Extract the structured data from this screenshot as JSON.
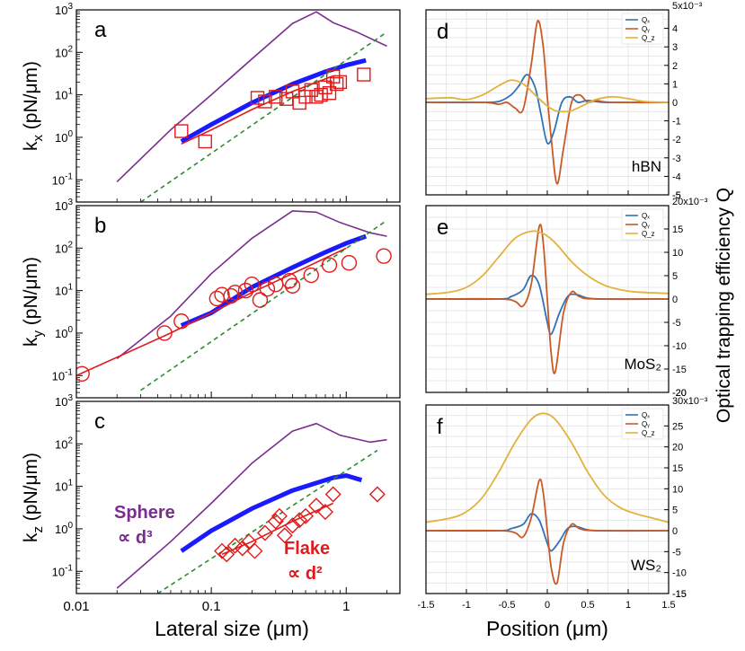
{
  "figure": {
    "left_xlabel": "Lateral size (μm)",
    "right_xlabel": "Position (μm)",
    "right_ylabel": "Optical trapping efficiency Q",
    "sphere_label_line1": "Sphere",
    "sphere_label_line2": "∝ d³",
    "flake_label_line1": "Flake",
    "flake_label_line2": "∝ d²"
  },
  "colors": {
    "sphere": "#7b2d8e",
    "model": "#1a1aff",
    "data": "#e01b1b",
    "d2": "#2e8b2e",
    "qx": "#2f72b8",
    "qy": "#c85a28",
    "qz": "#e3b23c"
  },
  "chart_data": [
    {
      "type": "line",
      "panel": "a",
      "ylabel": "k_x (pN/μm)",
      "xscale": "log",
      "yscale": "log",
      "xlim": [
        0.01,
        2.5
      ],
      "ylim": [
        0.03,
        1000
      ],
      "xticks": [
        "0.01",
        "0.1",
        "1"
      ],
      "yticks": [
        "10⁻¹",
        "10⁰",
        "10¹",
        "10²",
        "10³"
      ],
      "grid": false,
      "series": [
        {
          "role": "sphere",
          "style": "line",
          "x": [
            0.02,
            0.05,
            0.1,
            0.2,
            0.4,
            0.6,
            0.8,
            1.2,
            2.0
          ],
          "y": [
            0.09,
            1.5,
            10,
            70,
            480,
            900,
            500,
            300,
            140
          ]
        },
        {
          "role": "model",
          "style": "thick-line",
          "x": [
            0.06,
            0.1,
            0.2,
            0.4,
            0.7,
            1.0,
            1.4
          ],
          "y": [
            0.8,
            2.0,
            6.5,
            18,
            35,
            50,
            65
          ]
        },
        {
          "role": "fit",
          "style": "line",
          "x": [
            0.06,
            0.1,
            0.2,
            0.4,
            0.8
          ],
          "y": [
            0.7,
            1.5,
            4.5,
            12,
            28
          ]
        },
        {
          "role": "d2",
          "style": "dashed",
          "x": [
            0.03,
            2.0
          ],
          "y": [
            0.03,
            300
          ]
        },
        {
          "role": "data",
          "style": "square",
          "x": [
            0.06,
            0.09,
            0.22,
            0.25,
            0.3,
            0.36,
            0.4,
            0.45,
            0.5,
            0.55,
            0.6,
            0.65,
            0.7,
            0.75,
            0.8,
            0.85,
            0.9,
            1.35
          ],
          "y": [
            1.4,
            0.8,
            8.5,
            7,
            9,
            8,
            12,
            6.5,
            9,
            13,
            9,
            10,
            15,
            11,
            27,
            18,
            20,
            30
          ]
        }
      ]
    },
    {
      "type": "line",
      "panel": "b",
      "ylabel": "k_y (pN/μm)",
      "xscale": "log",
      "yscale": "log",
      "xlim": [
        0.01,
        2.5
      ],
      "ylim": [
        0.03,
        1000
      ],
      "xticks": [
        "0.01",
        "0.1",
        "1"
      ],
      "yticks": [
        "10⁻¹",
        "10⁰",
        "10¹",
        "10²",
        "10³"
      ],
      "grid": false,
      "series": [
        {
          "role": "sphere",
          "style": "line",
          "x": [
            0.02,
            0.05,
            0.1,
            0.2,
            0.4,
            0.6,
            0.9,
            1.5,
            2.0
          ],
          "y": [
            0.25,
            2.5,
            25,
            170,
            750,
            700,
            400,
            230,
            190
          ]
        },
        {
          "role": "model",
          "style": "thick-line",
          "x": [
            0.06,
            0.1,
            0.2,
            0.4,
            0.7,
            1.0,
            1.4
          ],
          "y": [
            1.5,
            3.0,
            12,
            35,
            80,
            130,
            190
          ]
        },
        {
          "role": "fit",
          "style": "line",
          "x": [
            0.01,
            0.05,
            0.1,
            0.2,
            0.5,
            1.0
          ],
          "y": [
            0.1,
            1.0,
            3.0,
            9,
            35,
            100
          ]
        },
        {
          "role": "d2",
          "style": "dashed",
          "x": [
            0.03,
            2.0
          ],
          "y": [
            0.045,
            450
          ]
        },
        {
          "role": "data",
          "style": "circle",
          "x": [
            0.011,
            0.045,
            0.06,
            0.11,
            0.12,
            0.14,
            0.15,
            0.18,
            0.2,
            0.23,
            0.26,
            0.3,
            0.38,
            0.4,
            0.55,
            0.75,
            1.05,
            1.9
          ],
          "y": [
            0.11,
            1.0,
            1.9,
            6.5,
            8,
            7.5,
            9,
            10,
            14,
            6,
            11,
            14,
            17,
            13,
            23,
            40,
            45,
            65
          ]
        }
      ]
    },
    {
      "type": "line",
      "panel": "c",
      "ylabel": "k_z (pN/μm)",
      "xscale": "log",
      "yscale": "log",
      "xlim": [
        0.01,
        2.5
      ],
      "ylim": [
        0.03,
        1000
      ],
      "xticks": [
        "0.01",
        "0.1",
        "1"
      ],
      "yticks": [
        "10⁻¹",
        "10⁰",
        "10¹",
        "10²",
        "10³"
      ],
      "grid": false,
      "series": [
        {
          "role": "sphere",
          "style": "line",
          "x": [
            0.02,
            0.05,
            0.1,
            0.2,
            0.4,
            0.6,
            0.9,
            1.5,
            2.0
          ],
          "y": [
            0.04,
            0.5,
            4,
            35,
            200,
            300,
            160,
            110,
            125
          ]
        },
        {
          "role": "model",
          "style": "thick-line",
          "x": [
            0.06,
            0.1,
            0.2,
            0.4,
            0.6,
            0.8,
            1.0,
            1.3
          ],
          "y": [
            0.3,
            0.9,
            3.0,
            8,
            12,
            16,
            18,
            14
          ]
        },
        {
          "role": "fit",
          "style": "line",
          "x": [
            0.12,
            0.2,
            0.4,
            0.8
          ],
          "y": [
            0.25,
            0.5,
            1.5,
            4.0
          ]
        },
        {
          "role": "d2",
          "style": "dashed",
          "x": [
            0.04,
            1.7
          ],
          "y": [
            0.03,
            70
          ]
        },
        {
          "role": "data",
          "style": "diamond",
          "x": [
            0.12,
            0.13,
            0.15,
            0.17,
            0.19,
            0.21,
            0.25,
            0.3,
            0.32,
            0.35,
            0.4,
            0.45,
            0.5,
            0.6,
            0.7,
            0.8,
            1.7
          ],
          "y": [
            0.3,
            0.25,
            0.4,
            0.35,
            0.5,
            0.3,
            0.8,
            1.5,
            2.0,
            0.7,
            1.2,
            1.6,
            2.0,
            3.5,
            2.5,
            6.5,
            6.5
          ]
        }
      ]
    },
    {
      "type": "line",
      "panel": "d",
      "material": "hBN",
      "xlim": [
        -1.5,
        1.5
      ],
      "ylim": [
        -5,
        5
      ],
      "exponent": "5x10⁻³",
      "xticks": [
        "-1.5",
        "-1",
        "-0.5",
        "0",
        "0.5",
        "1",
        "1.5"
      ],
      "yticks": [
        "-5",
        "-4",
        "-3",
        "-2",
        "-1",
        "0",
        "1",
        "2",
        "3",
        "4"
      ],
      "grid": true,
      "legend": [
        "Qₓ",
        "Qᵧ",
        "Q_z"
      ],
      "legend_position": "top-right",
      "series": [
        {
          "role": "qx",
          "x": [
            -1.5,
            -0.8,
            -0.6,
            -0.45,
            -0.35,
            -0.25,
            -0.15,
            -0.08,
            0.0,
            0.08,
            0.18,
            0.28,
            0.38,
            0.5,
            0.7,
            1.0,
            1.5
          ],
          "y": [
            0.0,
            0.0,
            0.05,
            0.4,
            0.9,
            1.5,
            0.8,
            -0.6,
            -2.2,
            -1.6,
            0.0,
            0.3,
            0.0,
            0.1,
            0.0,
            0.0,
            0.0
          ]
        },
        {
          "role": "qy",
          "x": [
            -1.5,
            -0.8,
            -0.6,
            -0.5,
            -0.4,
            -0.3,
            -0.2,
            -0.12,
            -0.05,
            0.0,
            0.05,
            0.12,
            0.2,
            0.3,
            0.4,
            0.5,
            0.6,
            0.8,
            1.5
          ],
          "y": [
            0.0,
            0.0,
            -0.1,
            0.0,
            -0.3,
            -0.4,
            2.0,
            4.4,
            3.0,
            0.3,
            -2.0,
            -4.4,
            -2.5,
            0.0,
            0.4,
            0.0,
            0.1,
            0.0,
            0.0
          ]
        },
        {
          "role": "qz",
          "x": [
            -1.5,
            -1.2,
            -1.0,
            -0.8,
            -0.6,
            -0.45,
            -0.3,
            -0.15,
            0.0,
            0.1,
            0.2,
            0.3,
            0.45,
            0.6,
            0.8,
            1.0,
            1.2,
            1.5
          ],
          "y": [
            0.2,
            0.25,
            0.15,
            0.4,
            0.9,
            1.2,
            1.0,
            0.4,
            -0.2,
            -0.45,
            -0.5,
            -0.45,
            -0.15,
            0.15,
            0.3,
            0.2,
            0.05,
            0.0
          ]
        }
      ]
    },
    {
      "type": "line",
      "panel": "e",
      "material": "MoS₂",
      "xlim": [
        -1.5,
        1.5
      ],
      "ylim": [
        -20,
        20
      ],
      "exponent": "20x10⁻³",
      "xticks": [
        "-1.5",
        "-1",
        "-0.5",
        "0",
        "0.5",
        "1",
        "1.5"
      ],
      "yticks": [
        "-20",
        "-15",
        "-10",
        "-5",
        "0",
        "5",
        "10",
        "15"
      ],
      "grid": true,
      "legend": [
        "Qₓ",
        "Qᵧ",
        "Q_z"
      ],
      "legend_position": "top-right",
      "series": [
        {
          "role": "qx",
          "x": [
            -1.5,
            -0.6,
            -0.45,
            -0.3,
            -0.2,
            -0.1,
            0.0,
            0.05,
            0.15,
            0.25,
            0.35,
            0.5,
            0.7,
            1.5
          ],
          "y": [
            0.0,
            0.0,
            0.5,
            2.0,
            5.0,
            3.0,
            -5.0,
            -7.5,
            -3.0,
            0.5,
            1.0,
            0.2,
            0.0,
            0.0
          ]
        },
        {
          "role": "qy",
          "x": [
            -1.5,
            -0.6,
            -0.4,
            -0.3,
            -0.2,
            -0.1,
            -0.05,
            0.0,
            0.05,
            0.1,
            0.2,
            0.3,
            0.4,
            0.6,
            1.5
          ],
          "y": [
            0.0,
            0.0,
            -0.5,
            -1.5,
            3.0,
            15.5,
            12.0,
            0.0,
            -12.0,
            -15.5,
            -3.0,
            1.5,
            0.5,
            0.0,
            0.0
          ]
        },
        {
          "role": "qz",
          "x": [
            -1.5,
            -1.2,
            -1.0,
            -0.8,
            -0.6,
            -0.4,
            -0.2,
            -0.05,
            0.1,
            0.3,
            0.5,
            0.7,
            0.9,
            1.1,
            1.5
          ],
          "y": [
            1.0,
            1.5,
            2.5,
            5.0,
            9.0,
            13.0,
            14.5,
            14.0,
            12.0,
            8.0,
            5.0,
            3.0,
            2.0,
            1.5,
            1.2
          ]
        }
      ]
    },
    {
      "type": "line",
      "panel": "f",
      "material": "WS₂",
      "xlim": [
        -1.5,
        1.5
      ],
      "ylim": [
        -15,
        30
      ],
      "exponent": "30x10⁻³",
      "xticks": [
        "-1.5",
        "-1",
        "-0.5",
        "0",
        "0.5",
        "1",
        "1.5"
      ],
      "yticks": [
        "-15",
        "-10",
        "-5",
        "0",
        "5",
        "10",
        "15",
        "20",
        "25"
      ],
      "grid": true,
      "legend": [
        "Qₓ",
        "Qᵧ",
        "Q_z"
      ],
      "legend_position": "top-right",
      "series": [
        {
          "role": "qx",
          "x": [
            -1.5,
            -0.6,
            -0.45,
            -0.3,
            -0.2,
            -0.1,
            0.0,
            0.05,
            0.15,
            0.25,
            0.35,
            0.5,
            0.7,
            1.5
          ],
          "y": [
            0.0,
            0.0,
            0.5,
            1.5,
            4.0,
            2.5,
            -3.0,
            -4.8,
            -2.5,
            0.5,
            1.0,
            0.2,
            0.0,
            0.0
          ]
        },
        {
          "role": "qy",
          "x": [
            -1.5,
            -0.6,
            -0.4,
            -0.3,
            -0.2,
            -0.1,
            -0.05,
            0.0,
            0.05,
            0.12,
            0.2,
            0.3,
            0.4,
            0.6,
            1.5
          ],
          "y": [
            0.0,
            0.0,
            -0.5,
            -1.5,
            3.0,
            12.0,
            9.0,
            0.0,
            -9.0,
            -12.5,
            -3.0,
            1.5,
            0.5,
            0.0,
            0.0
          ]
        },
        {
          "role": "qz",
          "x": [
            -1.5,
            -1.2,
            -1.0,
            -0.8,
            -0.6,
            -0.4,
            -0.2,
            -0.05,
            0.1,
            0.3,
            0.5,
            0.7,
            0.9,
            1.1,
            1.3,
            1.5
          ],
          "y": [
            2.0,
            3.0,
            4.5,
            8.0,
            14.0,
            21.0,
            26.5,
            28.0,
            26.5,
            21.0,
            14.0,
            8.5,
            5.5,
            4.0,
            3.0,
            2.0
          ]
        }
      ]
    }
  ]
}
